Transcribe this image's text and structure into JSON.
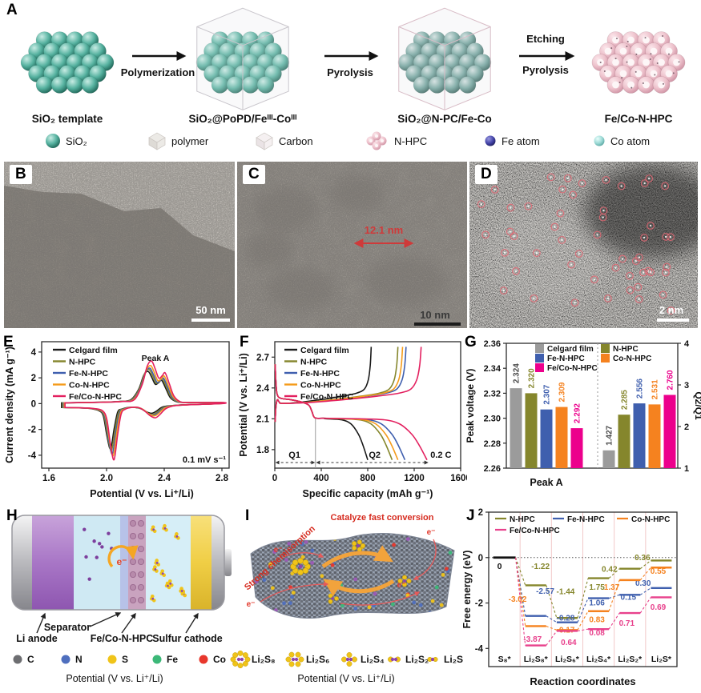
{
  "figure": {
    "panels": {
      "a": {
        "label": "A",
        "structures": [
          {
            "name": "SiO₂ template"
          },
          {
            "name": "SiO₂@PoPD/Feᴵᴵᴵ-Coᴵᴵᴵ"
          },
          {
            "name": "SiO₂@N-PC/Fe-Co"
          },
          {
            "name": "Fe/Co-N-HPC"
          }
        ],
        "arrows": [
          {
            "label": "Polymerization"
          },
          {
            "label": "Pyrolysis"
          },
          {
            "label_top": "Etching",
            "label_bottom": "Pyrolysis"
          }
        ],
        "legend": [
          {
            "label": "SiO₂",
            "icon": "silica-sphere",
            "color": "#4da893"
          },
          {
            "label": "polymer",
            "icon": "polymer-cube",
            "color": "#dedbd6"
          },
          {
            "label": "Carbon",
            "icon": "carbon-cube",
            "color": "#f1ebec"
          },
          {
            "label": "N-HPC",
            "icon": "nhpc-framework",
            "color": "#eaa9bb"
          },
          {
            "label": "Fe atom",
            "icon": "fe-atom-sphere",
            "color": "#35357f"
          },
          {
            "label": "Co atom",
            "icon": "co-atom-sphere",
            "color": "#8fd0cc"
          }
        ]
      },
      "b": {
        "label": "B",
        "scale_bar": "50 nm"
      },
      "c": {
        "label": "C",
        "annotation": "12.1 nm",
        "scale_bar": "10 nm"
      },
      "d": {
        "label": "D",
        "scale_bar": "2 nm"
      },
      "h": {
        "label": "H",
        "component_labels": [
          "Li anode",
          "Separator",
          "Fe/Co-N-HPC",
          "Sulfur cathode"
        ],
        "electron_label": "e⁻",
        "caption": "Potential (V vs. Li⁺/Li)"
      },
      "i": {
        "label": "I",
        "annotation_left": "Strong chemisorption",
        "annotation_top": "Catalyze fast conversion",
        "electron_label": "e⁻",
        "caption": "Potential (V vs. Li⁺/Li)"
      },
      "legend_strip": {
        "atoms": [
          {
            "label": "C",
            "color": "#6d6e71"
          },
          {
            "label": "N",
            "color": "#4f6fbe"
          },
          {
            "label": "S",
            "color": "#f0c419"
          },
          {
            "label": "Fe",
            "color": "#3cb878"
          },
          {
            "label": "Co",
            "color": "#e8372c"
          }
        ],
        "species": [
          {
            "label": "Li₂S₈"
          },
          {
            "label": "Li₂S₆"
          },
          {
            "label": "Li₂S₄"
          },
          {
            "label": "Li₂S₂"
          },
          {
            "label": "Li₂S"
          }
        ]
      }
    }
  },
  "chart_data": [
    {
      "id": "E",
      "type": "line",
      "subtype": "cyclic-voltammetry",
      "xlabel": "Potential (V vs. Li⁺/Li)",
      "ylabel": "Current density (mA g⁻¹)",
      "xlim": [
        1.55,
        2.85
      ],
      "ylim": [
        -5.0,
        4.8
      ],
      "xticks": [
        "1.6",
        "2.0",
        "2.4",
        "2.8"
      ],
      "xtick_values": [
        1.6,
        2.0,
        2.4,
        2.8
      ],
      "yticks": [
        "-4",
        "-2",
        "0",
        "2",
        "4"
      ],
      "ytick_values": [
        -4,
        -2,
        0,
        2,
        4
      ],
      "peak_annotation": "Peak A",
      "scan_rate_note": "0.1 mV s⁻¹",
      "anodic_peak_V": 2.31,
      "cathodic_peak_V": 2.04,
      "legend_position": "top-left",
      "series": [
        {
          "name": "Celgard film",
          "color": "#1a1a1a",
          "anodic_peak_mA": 2.5,
          "cathodic_peak_mA": -3.5,
          "minor_cathodic_mA": -0.75
        },
        {
          "name": "N-HPC",
          "color": "#85862c",
          "anodic_peak_mA": 2.65,
          "cathodic_peak_mA": -3.65,
          "minor_cathodic_mA": -0.85
        },
        {
          "name": "Fe-N-HPC",
          "color": "#3f5fae",
          "anodic_peak_mA": 2.75,
          "cathodic_peak_mA": -3.9,
          "minor_cathodic_mA": -0.9
        },
        {
          "name": "Co-N-HPC",
          "color": "#f49c1c",
          "anodic_peak_mA": 2.95,
          "cathodic_peak_mA": -4.05,
          "minor_cathodic_mA": -0.95
        },
        {
          "name": "Fe/Co-N-HPC",
          "color": "#e3205f",
          "anodic_peak_mA": 3.3,
          "cathodic_peak_mA": -4.35,
          "minor_cathodic_mA": -1.1
        }
      ]
    },
    {
      "id": "F",
      "type": "line",
      "subtype": "galvanostatic-charge-discharge",
      "xlabel": "Specific capacity (mAh g⁻¹)",
      "ylabel": "Potential (V vs. Li⁺/Li)",
      "xlim": [
        0,
        1600
      ],
      "ylim": [
        1.62,
        2.85
      ],
      "xticks": [
        "0",
        "400",
        "800",
        "1200",
        "1600"
      ],
      "xtick_values": [
        0,
        400,
        800,
        1200,
        1600
      ],
      "yticks": [
        "1.8",
        "2.1",
        "2.4",
        "2.7"
      ],
      "ytick_values": [
        1.8,
        2.1,
        2.4,
        2.7
      ],
      "annotations": {
        "q1": "Q1",
        "q2": "Q2",
        "rate": "0.2 C"
      },
      "q1_capacity_mAh_g": 350,
      "legend_position": "top-left",
      "series": [
        {
          "name": "Celgard film",
          "color": "#1a1a1a",
          "discharge_capacity": 800,
          "charge_capacity": 830
        },
        {
          "name": "N-HPC",
          "color": "#85862c",
          "discharge_capacity": 1010,
          "charge_capacity": 1060
        },
        {
          "name": "Fe-N-HPC",
          "color": "#3f5fae",
          "discharge_capacity": 1120,
          "charge_capacity": 1130
        },
        {
          "name": "Co-N-HPC",
          "color": "#f49c1c",
          "discharge_capacity": 1060,
          "charge_capacity": 1100
        },
        {
          "name": "Fe/Co-N-HPC",
          "color": "#e3205f",
          "discharge_capacity": 1310,
          "charge_capacity": 1260
        }
      ]
    },
    {
      "id": "G",
      "type": "bar",
      "ylabel_left": "Peak voltage (V)",
      "ylabel_right": "Q2/Q1",
      "xlabel": "Peak A",
      "ylim_left": [
        2.26,
        2.36
      ],
      "yticks_left": [
        "2.26",
        "2.28",
        "2.30",
        "2.32",
        "2.34",
        "2.36"
      ],
      "ytick_values_left": [
        2.26,
        2.28,
        2.3,
        2.32,
        2.34,
        2.36
      ],
      "ylim_right": [
        1,
        4
      ],
      "yticks_right": [
        "1",
        "2",
        "3",
        "4"
      ],
      "ytick_values_right": [
        1,
        2,
        3,
        4
      ],
      "groups": [
        "Peak A (left axis)",
        "Q2/Q1 (right axis)"
      ],
      "series": [
        {
          "name": "Celgard film",
          "color": "#9b9b9b",
          "label_color": "#4a4a4a",
          "peak_a_V": 2.324,
          "peak_a_label": "2.324",
          "q2_q1": 1.427,
          "q2_q1_label": "1.427"
        },
        {
          "name": "N-HPC",
          "color": "#85862c",
          "label_color": "#85862c",
          "peak_a_V": 2.32,
          "peak_a_label": "2.320",
          "q2_q1": 2.285,
          "q2_q1_label": "2.285"
        },
        {
          "name": "Fe-N-HPC",
          "color": "#3f5fae",
          "label_color": "#3f5fae",
          "peak_a_V": 2.307,
          "peak_a_label": "2.307",
          "q2_q1": 2.556,
          "q2_q1_label": "2.556"
        },
        {
          "name": "Co-N-HPC",
          "color": "#f5821f",
          "label_color": "#f5821f",
          "peak_a_V": 2.309,
          "peak_a_label": "2.309",
          "q2_q1": 2.531,
          "q2_q1_label": "2.531"
        },
        {
          "name": "Fe/Co-N-HPC",
          "color": "#ec008c",
          "label_color": "#ec008c",
          "peak_a_V": 2.292,
          "peak_a_label": "2.292",
          "q2_q1": 2.76,
          "q2_q1_label": "2.760"
        }
      ]
    },
    {
      "id": "J",
      "type": "line",
      "subtype": "free-energy-profile",
      "xlabel": "Reaction coordinates",
      "ylabel": "Free energy (eV)",
      "ylim": [
        -4.8,
        2
      ],
      "yticks": [
        "2",
        "0",
        "-2",
        "-4"
      ],
      "ytick_values": [
        2,
        0,
        -2,
        -4
      ],
      "categories": [
        "S₈*",
        "Li₂S₈*",
        "Li₂S₆*",
        "Li₂S₄*",
        "Li₂S₂*",
        "Li₂S*"
      ],
      "start_level_label": "0",
      "legend_position": "top-inside",
      "series": [
        {
          "name": "N-HPC",
          "color": "#85862c",
          "levels": [
            0,
            -1.22,
            -2.66,
            -0.91,
            -0.49,
            -0.13
          ],
          "step_labels": [
            "-1.22",
            "-1.44",
            "1.75",
            "0.42",
            "0.36"
          ]
        },
        {
          "name": "Fe-N-HPC",
          "color": "#3f5fae",
          "levels": [
            0,
            -2.57,
            -2.85,
            -1.79,
            -1.64,
            -1.34
          ],
          "step_labels": [
            "-2.57",
            "-0.28",
            "1.06",
            "0.15",
            "0.30"
          ]
        },
        {
          "name": "Co-N-HPC",
          "color": "#f5821f",
          "levels": [
            0,
            -3.02,
            -3.19,
            -2.36,
            -0.99,
            -0.44
          ],
          "step_labels": [
            "-3.02",
            "-0.17",
            "0.83",
            "1.37",
            "0.55"
          ]
        },
        {
          "name": "Fe/Co-N-HPC",
          "color": "#e8418c",
          "levels": [
            0,
            -3.87,
            -3.23,
            -3.15,
            -2.44,
            -1.75
          ],
          "step_labels": [
            "-3.87",
            "0.64",
            "0.08",
            "0.71",
            "0.69"
          ]
        }
      ]
    }
  ]
}
